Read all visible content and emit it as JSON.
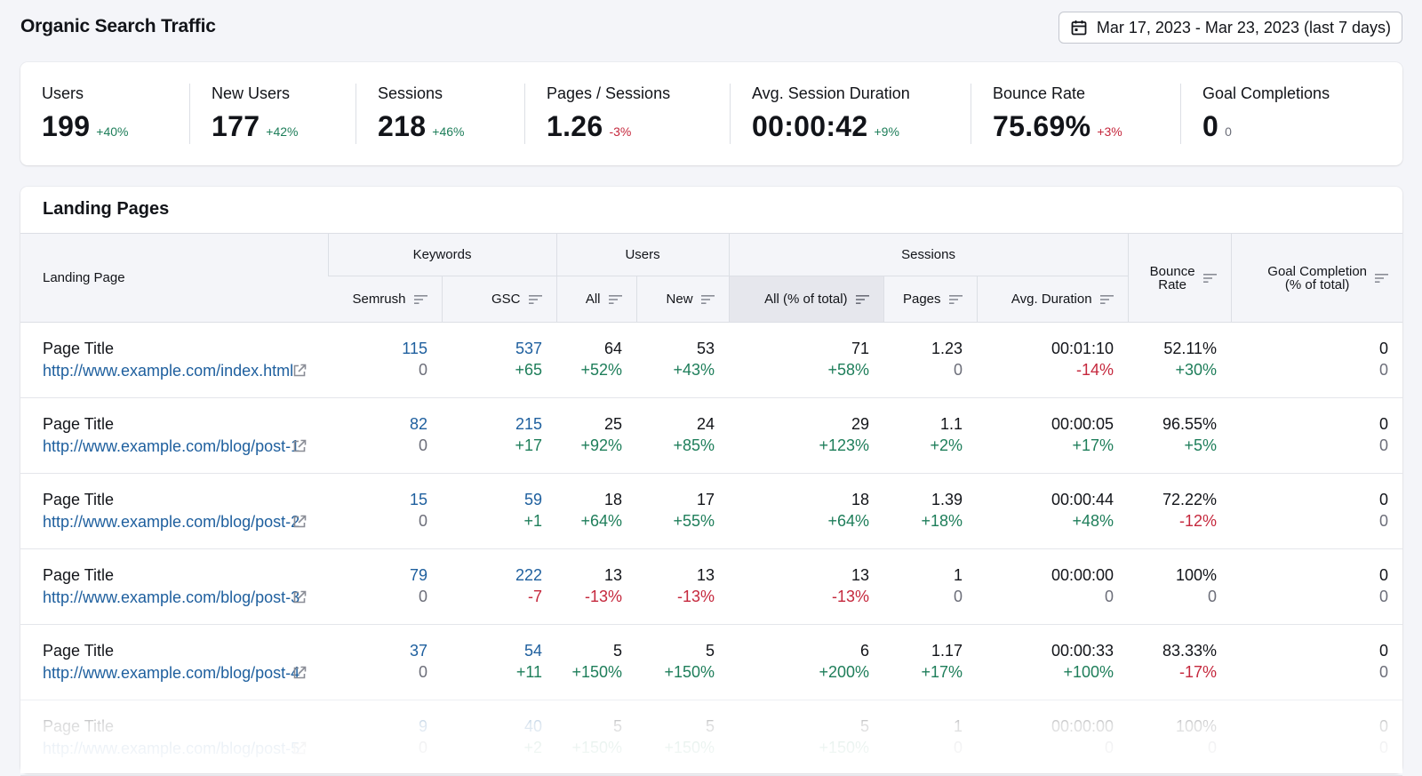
{
  "page": {
    "title": "Organic Search Traffic",
    "date_range": "Mar 17, 2023 - Mar 23, 2023 (last 7 days)"
  },
  "colors": {
    "positive": "#1e7e5a",
    "negative": "#c5283d",
    "link": "#1e5f9e",
    "neutral": "#6c6e79"
  },
  "icons": {
    "date_picker": "calendar-icon",
    "sort": "sort-icon",
    "open_url": "external-link-icon"
  },
  "metrics": [
    {
      "label": "Users",
      "value": "199",
      "delta": "+40%",
      "trend": "pos"
    },
    {
      "label": "New Users",
      "value": "177",
      "delta": "+42%",
      "trend": "pos"
    },
    {
      "label": "Sessions",
      "value": "218",
      "delta": "+46%",
      "trend": "pos"
    },
    {
      "label": "Pages / Sessions",
      "value": "1.26",
      "delta": "-3%",
      "trend": "neg"
    },
    {
      "label": "Avg. Session Duration",
      "value": "00:00:42",
      "delta": "+9%",
      "trend": "pos"
    },
    {
      "label": "Bounce Rate",
      "value": "75.69%",
      "delta": "+3%",
      "trend": "neg"
    },
    {
      "label": "Goal Completions",
      "value": "0",
      "delta": "0",
      "trend": "neutral"
    }
  ],
  "landing": {
    "title": "Landing Pages",
    "headers": {
      "landing_page": "Landing Page",
      "keywords": "Keywords",
      "users": "Users",
      "sessions": "Sessions",
      "semrush": "Semrush",
      "gsc": "GSC",
      "all": "All",
      "new": "New",
      "all_pct": "All (% of total)",
      "pages": "Pages",
      "avg_duration": "Avg. Duration",
      "bounce_rate_1": "Bounce",
      "bounce_rate_2": "Rate",
      "goal_1": "Goal Completion",
      "goal_2": "(% of total)"
    },
    "rows": [
      {
        "title": "Page Title",
        "url": "http://www.example.com/index.html",
        "semrush": "115",
        "semrush_d": "0",
        "gsc": "537",
        "gsc_d": "+65",
        "all": "64",
        "all_d": "+52%",
        "new": "53",
        "new_d": "+43%",
        "sessions": "71",
        "sessions_d": "+58%",
        "pages": "1.23",
        "pages_d": "0",
        "duration": "00:01:10",
        "duration_d": "-14%",
        "bounce": "52.11%",
        "bounce_d": "+30%",
        "goal": "0",
        "goal_d": "0"
      },
      {
        "title": "Page Title",
        "url": "http://www.example.com/blog/post-1",
        "semrush": "82",
        "semrush_d": "0",
        "gsc": "215",
        "gsc_d": "+17",
        "all": "25",
        "all_d": "+92%",
        "new": "24",
        "new_d": "+85%",
        "sessions": "29",
        "sessions_d": "+123%",
        "pages": "1.1",
        "pages_d": "+2%",
        "duration": "00:00:05",
        "duration_d": "+17%",
        "bounce": "96.55%",
        "bounce_d": "+5%",
        "goal": "0",
        "goal_d": "0"
      },
      {
        "title": "Page Title",
        "url": "http://www.example.com/blog/post-2",
        "semrush": "15",
        "semrush_d": "0",
        "gsc": "59",
        "gsc_d": "+1",
        "all": "18",
        "all_d": "+64%",
        "new": "17",
        "new_d": "+55%",
        "sessions": "18",
        "sessions_d": "+64%",
        "pages": "1.39",
        "pages_d": "+18%",
        "duration": "00:00:44",
        "duration_d": "+48%",
        "bounce": "72.22%",
        "bounce_d": "-12%",
        "goal": "0",
        "goal_d": "0"
      },
      {
        "title": "Page Title",
        "url": "http://www.example.com/blog/post-3",
        "semrush": "79",
        "semrush_d": "0",
        "gsc": "222",
        "gsc_d": "-7",
        "all": "13",
        "all_d": "-13%",
        "new": "13",
        "new_d": "-13%",
        "sessions": "13",
        "sessions_d": "-13%",
        "pages": "1",
        "pages_d": "0",
        "duration": "00:00:00",
        "duration_d": "0",
        "bounce": "100%",
        "bounce_d": "0",
        "goal": "0",
        "goal_d": "0"
      },
      {
        "title": "Page Title",
        "url": "http://www.example.com/blog/post-4",
        "semrush": "37",
        "semrush_d": "0",
        "gsc": "54",
        "gsc_d": "+11",
        "all": "5",
        "all_d": "+150%",
        "new": "5",
        "new_d": "+150%",
        "sessions": "6",
        "sessions_d": "+200%",
        "pages": "1.17",
        "pages_d": "+17%",
        "duration": "00:00:33",
        "duration_d": "+100%",
        "bounce": "83.33%",
        "bounce_d": "-17%",
        "goal": "0",
        "goal_d": "0"
      },
      {
        "title": "Page Title",
        "url": "http://www.example.com/blog/post-5",
        "semrush": "9",
        "semrush_d": "0",
        "gsc": "40",
        "gsc_d": "+2",
        "all": "5",
        "all_d": "+150%",
        "new": "5",
        "new_d": "+150%",
        "sessions": "5",
        "sessions_d": "+150%",
        "pages": "1",
        "pages_d": "0",
        "duration": "00:00:00",
        "duration_d": "0",
        "bounce": "100%",
        "bounce_d": "0",
        "goal": "0",
        "goal_d": "0"
      }
    ]
  }
}
